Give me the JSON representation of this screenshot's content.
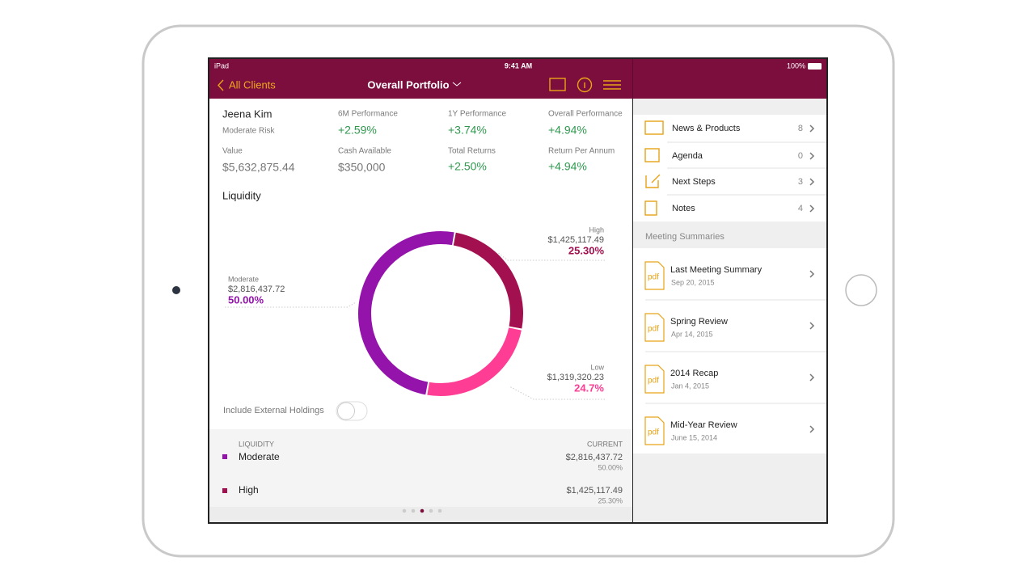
{
  "status_bar": {
    "device": "iPad",
    "time": "9:41 AM",
    "battery": "100%"
  },
  "nav": {
    "back": "All Clients",
    "title": "Overall Portfolio"
  },
  "client": {
    "name": "Jeena Kim",
    "risk": "Moderate Risk",
    "value_label": "Value",
    "value": "$5,632,875.44"
  },
  "metrics": [
    {
      "label": "6M Performance",
      "value": "+2.59%"
    },
    {
      "label": "1Y Performance",
      "value": "+3.74%"
    },
    {
      "label": "Overall Performance",
      "value": "+4.94%"
    },
    {
      "label": "Cash Available",
      "value": "$350,000"
    },
    {
      "label": "Total Returns",
      "value": "+2.50%"
    },
    {
      "label": "Return Per Annum",
      "value": "+4.94%"
    }
  ],
  "chart_data": {
    "type": "donut",
    "title": "Liquidity",
    "categories": [
      "High",
      "Low",
      "Moderate"
    ],
    "values": [
      25.3,
      24.7,
      50
    ],
    "value_labels": [
      "25.30%",
      "24.7%",
      "50.00%"
    ],
    "amounts": [
      "$1,425,117.49",
      "$1,319,320.23",
      "$2,816,437.72"
    ],
    "colors": [
      "#a3104f",
      "#ff3d94",
      "#9313ab"
    ]
  },
  "toggle": {
    "label": "Include External Holdings"
  },
  "table": {
    "header": [
      "LIQUIDITY",
      "CURRENT"
    ],
    "rows": [
      [
        "Moderate",
        "$2,816,437.72",
        "50.00%"
      ],
      [
        "High",
        "$1,425,117.49",
        "25.30%"
      ]
    ]
  },
  "side_list": [
    {
      "label": "News & Products",
      "count": "8"
    },
    {
      "label": "Agenda",
      "count": "0"
    },
    {
      "label": "Next Steps",
      "count": "3"
    },
    {
      "label": "Notes",
      "count": "4"
    }
  ],
  "meetings": {
    "header": "Meeting Summaries",
    "icon_label": "pdf",
    "items": [
      {
        "title": "Last Meeting Summary",
        "date": "Sep 20, 2015"
      },
      {
        "title": "Spring Review",
        "date": "Apr 14, 2015"
      },
      {
        "title": "2014 Recap",
        "date": "Jan 4, 2015"
      },
      {
        "title": "Mid-Year Review",
        "date": "June 15, 2014"
      }
    ]
  }
}
